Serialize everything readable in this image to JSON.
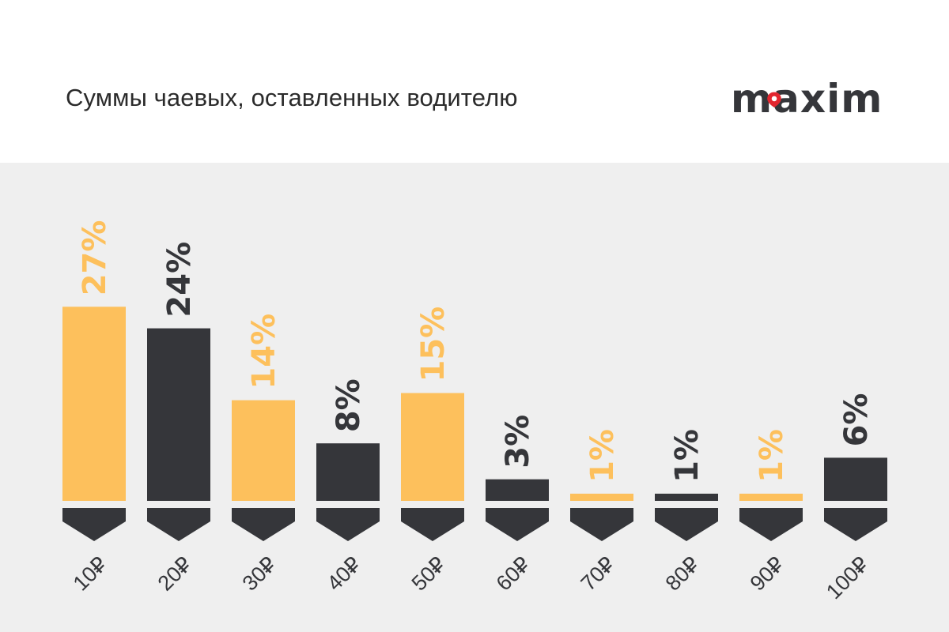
{
  "header": {
    "title": "Суммы чаевых, оставленных водителю",
    "logo_text": "maxim",
    "logo_icon": "map-pin-icon"
  },
  "colors": {
    "accent": "#FDC05C",
    "dark": "#35363A",
    "background": "#EFEFEF",
    "brand_red": "#E3262F"
  },
  "chart_data": {
    "type": "bar",
    "title": "Суммы чаевых, оставленных водителю",
    "xlabel": "",
    "ylabel": "",
    "categories": [
      "10₽",
      "20₽",
      "30₽",
      "40₽",
      "50₽",
      "60₽",
      "70₽",
      "80₽",
      "90₽",
      "100₽"
    ],
    "values": [
      27,
      24,
      14,
      8,
      15,
      3,
      1,
      1,
      1,
      6
    ],
    "value_labels": [
      "27%",
      "24%",
      "14%",
      "8%",
      "15%",
      "3%",
      "1%",
      "1%",
      "1%",
      "6%"
    ],
    "bar_colors": [
      "accent",
      "dark",
      "accent",
      "dark",
      "accent",
      "dark",
      "accent",
      "dark",
      "accent",
      "dark"
    ],
    "grid": false,
    "legend": "none"
  }
}
